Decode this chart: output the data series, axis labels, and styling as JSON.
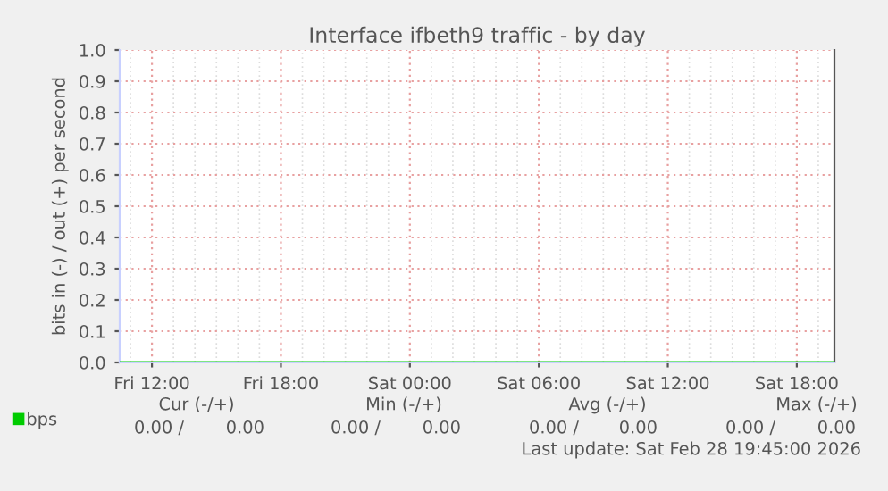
{
  "chart_data": {
    "type": "line",
    "title": "Interface ifbeth9 traffic - by day",
    "ylabel": "bits in (-) / out (+) per second",
    "x": [
      "2026-02-27T10:30",
      "2026-02-27T12:00",
      "2026-02-27T18:00",
      "2026-02-28T00:00",
      "2026-02-28T06:00",
      "2026-02-28T12:00",
      "2026-02-28T18:00",
      "2026-02-28T19:45"
    ],
    "series": [
      {
        "name": "bps",
        "color": "#00cc00",
        "values": [
          0,
          0,
          0,
          0,
          0,
          0,
          0,
          0
        ]
      }
    ],
    "xlim": [
      "2026-02-27T10:30",
      "2026-02-28T19:45"
    ],
    "xticks": [
      {
        "value": "2026-02-27T12:00",
        "label": "Fri 12:00"
      },
      {
        "value": "2026-02-27T18:00",
        "label": "Fri 18:00"
      },
      {
        "value": "2026-02-28T00:00",
        "label": "Sat 00:00"
      },
      {
        "value": "2026-02-28T06:00",
        "label": "Sat 06:00"
      },
      {
        "value": "2026-02-28T12:00",
        "label": "Sat 12:00"
      },
      {
        "value": "2026-02-28T18:00",
        "label": "Sat 18:00"
      }
    ],
    "ylim": [
      0,
      1
    ],
    "yticks": [
      {
        "value": 0,
        "label": "0.0"
      },
      {
        "value": 0.1,
        "label": "0.1"
      },
      {
        "value": 0.2,
        "label": "0.2"
      },
      {
        "value": 0.3,
        "label": "0.3"
      },
      {
        "value": 0.4,
        "label": "0.4"
      },
      {
        "value": 0.5,
        "label": "0.5"
      },
      {
        "value": 0.6,
        "label": "0.6"
      },
      {
        "value": 0.7,
        "label": "0.7"
      },
      {
        "value": 0.8,
        "label": "0.8"
      },
      {
        "value": 0.9,
        "label": "0.9"
      },
      {
        "value": 1,
        "label": "1.0"
      }
    ],
    "grid": true,
    "legend": "bottom left",
    "annotations": [
      "Cur (-/+)",
      "Min (-/+)",
      "Avg (-/+)",
      "Max (-/+)",
      "0.00 /",
      "0.00",
      "0.00 /",
      "0.00",
      "0.00 /",
      "0.00",
      "0.00 /",
      "0.00",
      "Last update: Sat Feb 28 19:45:00 2026"
    ]
  }
}
